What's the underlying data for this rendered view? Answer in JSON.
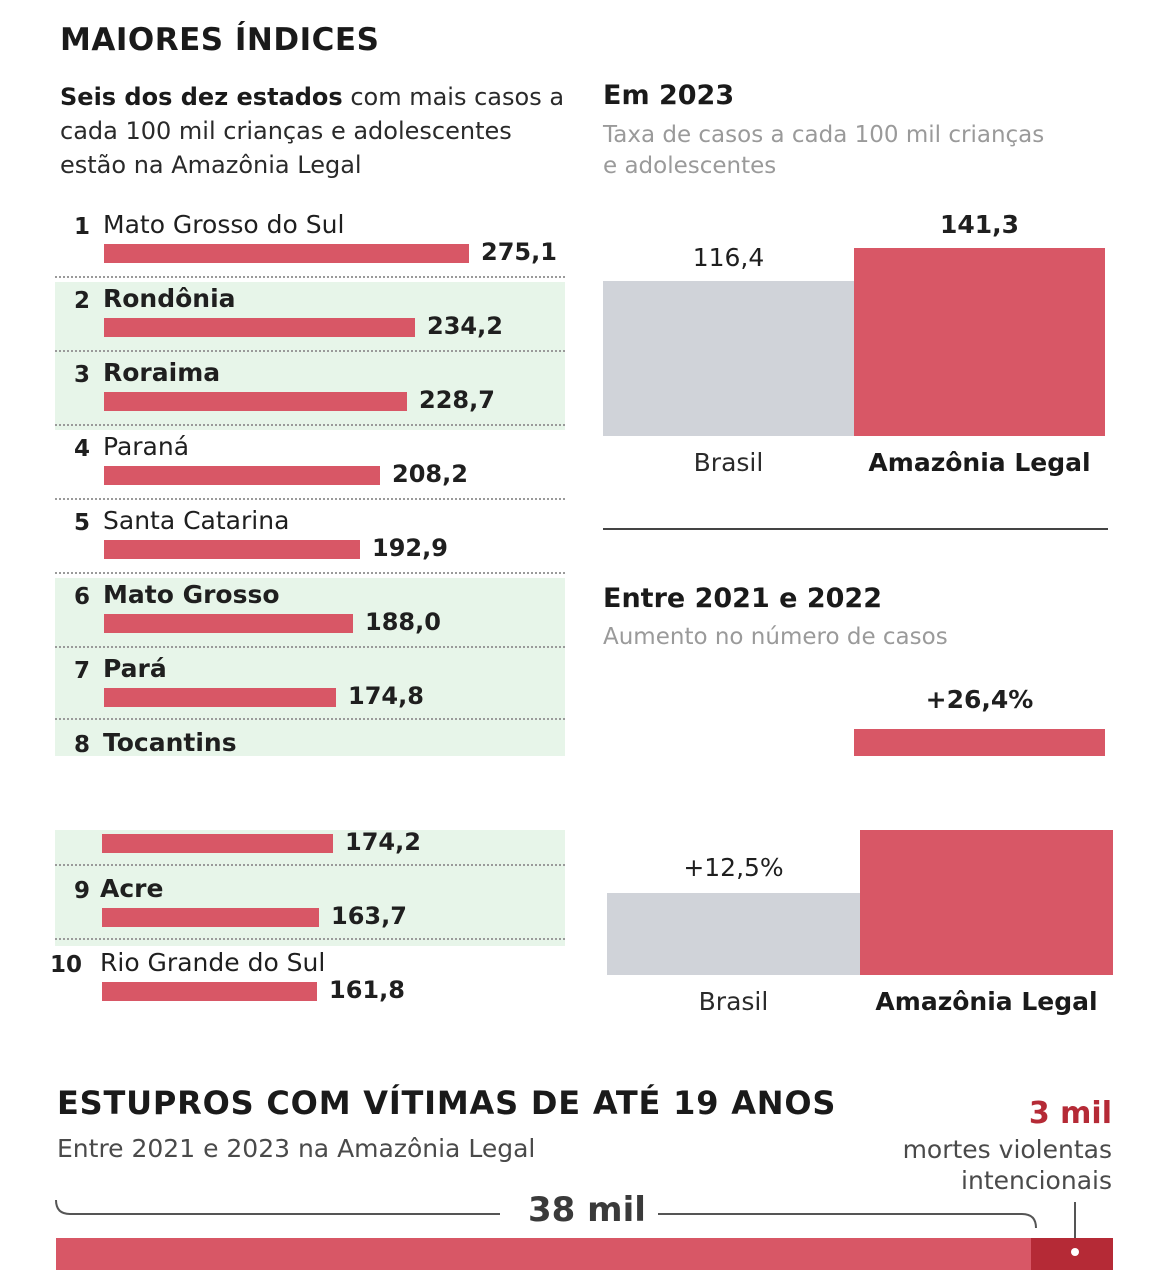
{
  "header": {
    "title": "MAIORES ÍNDICES",
    "subtitle_bold": "Seis dos dez estados",
    "subtitle_rest": " com mais casos a cada 100 mil crianças e adolescentes estão na Amazônia Legal"
  },
  "colors": {
    "red": "#d85766",
    "dark_red": "#b52a36",
    "gray": "#d0d3d9",
    "highlight_band": "#e7f5e9"
  },
  "chart_data": [
    {
      "type": "bar",
      "orientation": "horizontal",
      "categories": [
        "Mato Grosso do Sul",
        "Rondônia",
        "Roraima",
        "Paraná",
        "Santa Catarina",
        "Mato Grosso",
        "Pará",
        "Tocantins",
        "Acre",
        "Rio Grande do Sul"
      ],
      "ranks": [
        "1",
        "2",
        "3",
        "4",
        "5",
        "6",
        "7",
        "8",
        "9",
        "10"
      ],
      "values": [
        275.1,
        234.2,
        228.7,
        208.2,
        192.9,
        188.0,
        174.8,
        174.2,
        163.7,
        161.8
      ],
      "value_labels": [
        "275,1",
        "234,2",
        "228,7",
        "208,2",
        "192,9",
        "188,0",
        "174,8",
        "174,2",
        "163,7",
        "161,8"
      ],
      "highlighted": [
        false,
        true,
        true,
        false,
        false,
        true,
        true,
        true,
        true,
        false
      ]
    },
    {
      "type": "bar",
      "title": "Em 2023",
      "subtitle": "Taxa de casos a cada 100 mil crianças e adolescentes",
      "categories": [
        "Brasil",
        "Amazônia Legal"
      ],
      "values": [
        116.4,
        141.3
      ],
      "value_labels": [
        "116,4",
        "141,3"
      ]
    },
    {
      "type": "bar",
      "title": "Entre 2021 e 2022",
      "subtitle": "Aumento no número de casos",
      "categories": [
        "Brasil",
        "Amazônia Legal"
      ],
      "values": [
        12.5,
        26.4
      ],
      "value_labels": [
        "+12,5%",
        "+26,4%"
      ]
    },
    {
      "type": "bar",
      "orientation": "horizontal",
      "stacked": true,
      "title": "ESTUPROS COM VÍTIMAS DE ATÉ 19 ANOS",
      "subtitle": "Entre 2021 e 2023 na Amazônia Legal",
      "segments": [
        {
          "label": "38 mil",
          "value": 38000
        },
        {
          "label": "3 mil",
          "description": "mortes violentas intencionais",
          "value": 3000
        }
      ]
    }
  ]
}
